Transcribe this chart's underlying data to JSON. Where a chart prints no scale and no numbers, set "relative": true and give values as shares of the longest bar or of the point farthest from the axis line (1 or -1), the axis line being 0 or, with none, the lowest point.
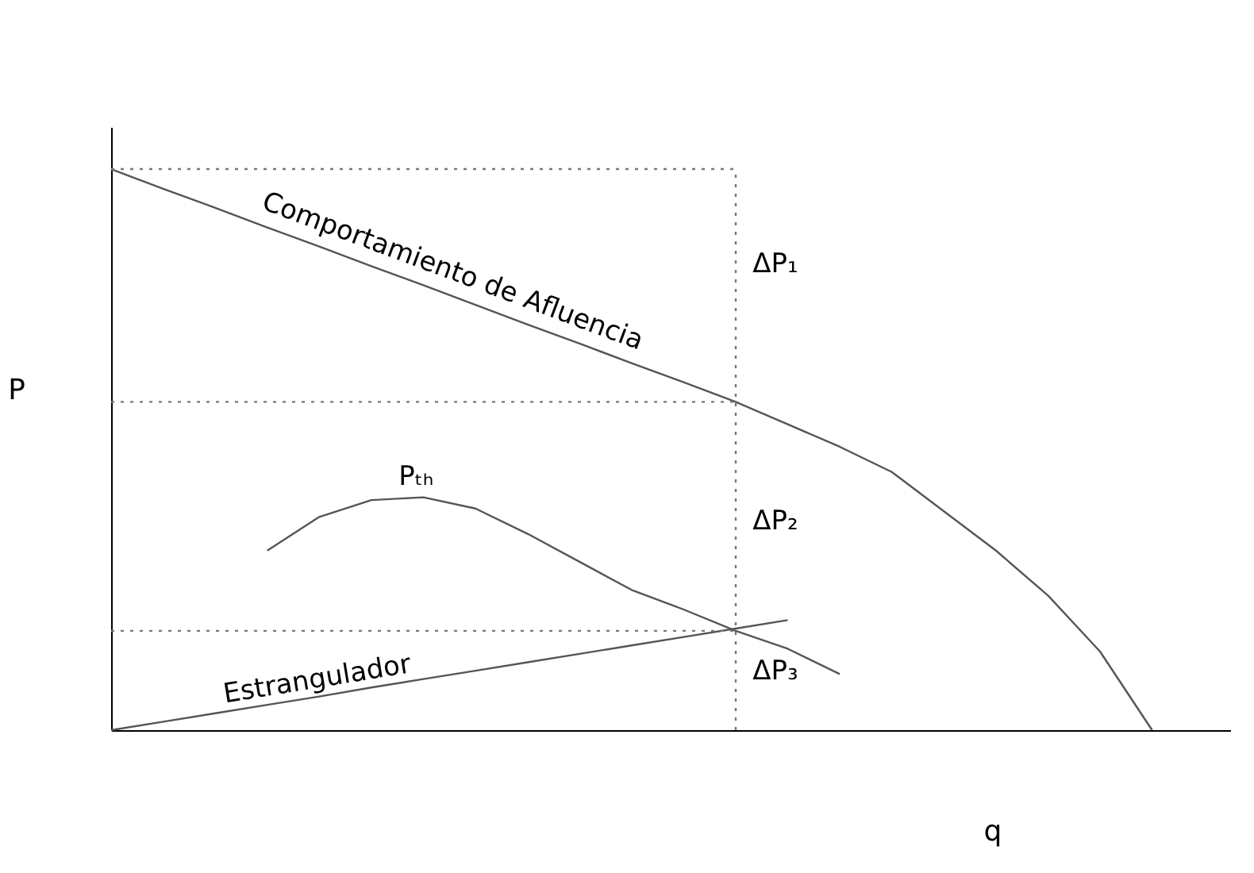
{
  "chart_data": {
    "type": "line",
    "relative": true,
    "xlabel": "q",
    "ylabel": "P",
    "categories": [
      null,
      null,
      null,
      null,
      null,
      null,
      null,
      null,
      null,
      null,
      null,
      null,
      null,
      null,
      null,
      null,
      null,
      null,
      null,
      null,
      null
    ],
    "series": [
      {
        "color": "#555555",
        "values": [
          1,
          0.965,
          0.931,
          0.896,
          0.862,
          0.827,
          0.793,
          0.758,
          0.723,
          0.689,
          0.654,
          0.62,
          0.585,
          0.545,
          0.505,
          0.46,
          0.39,
          0.32,
          0.24,
          0.14,
          0
        ],
        "line_style": "solid"
      },
      {
        "color": "#555555",
        "values": [
          null,
          null,
          null,
          0.32,
          0.38,
          0.41,
          0.415,
          0.395,
          0.35,
          0.3,
          0.25,
          0.215,
          0.177,
          0.145,
          0.1,
          null,
          null,
          null,
          null,
          null,
          null
        ],
        "line_style": "solid"
      },
      {
        "color": "#555555",
        "values": [
          0,
          0.015,
          0.03,
          0.045,
          0.06,
          0.076,
          0.091,
          0.106,
          0.121,
          0.136,
          0.151,
          0.166,
          0.181,
          0.196,
          null,
          null,
          null,
          null,
          null,
          null,
          null
        ],
        "line_style": "solid"
      },
      {
        "color": "#777777",
        "values": [
          1,
          1,
          1,
          1,
          1,
          1,
          1,
          1,
          1,
          1,
          1,
          1,
          1,
          null,
          null,
          null,
          null,
          null,
          null,
          null,
          null
        ],
        "line_style": "dotted"
      },
      {
        "color": "#777777",
        "values": [
          0.585,
          0.585,
          0.585,
          0.585,
          0.585,
          0.585,
          0.585,
          0.585,
          0.585,
          0.585,
          0.585,
          0.585,
          0.585,
          null,
          null,
          null,
          null,
          null,
          null,
          null,
          null
        ],
        "line_style": "dotted"
      },
      {
        "color": "#777777",
        "values": [
          0.177,
          0.177,
          0.177,
          0.177,
          0.177,
          0.177,
          0.177,
          0.177,
          0.177,
          0.177,
          0.177,
          0.177,
          0.177,
          null,
          null,
          null,
          null,
          null,
          null,
          null,
          null
        ],
        "line_style": "dotted"
      }
    ],
    "annotations": [
      "Comportamiento de Afluencia",
      "ΔP₁",
      "ΔP₂",
      "ΔP₃",
      "Pₜₕ",
      "Estrangulador"
    ]
  }
}
